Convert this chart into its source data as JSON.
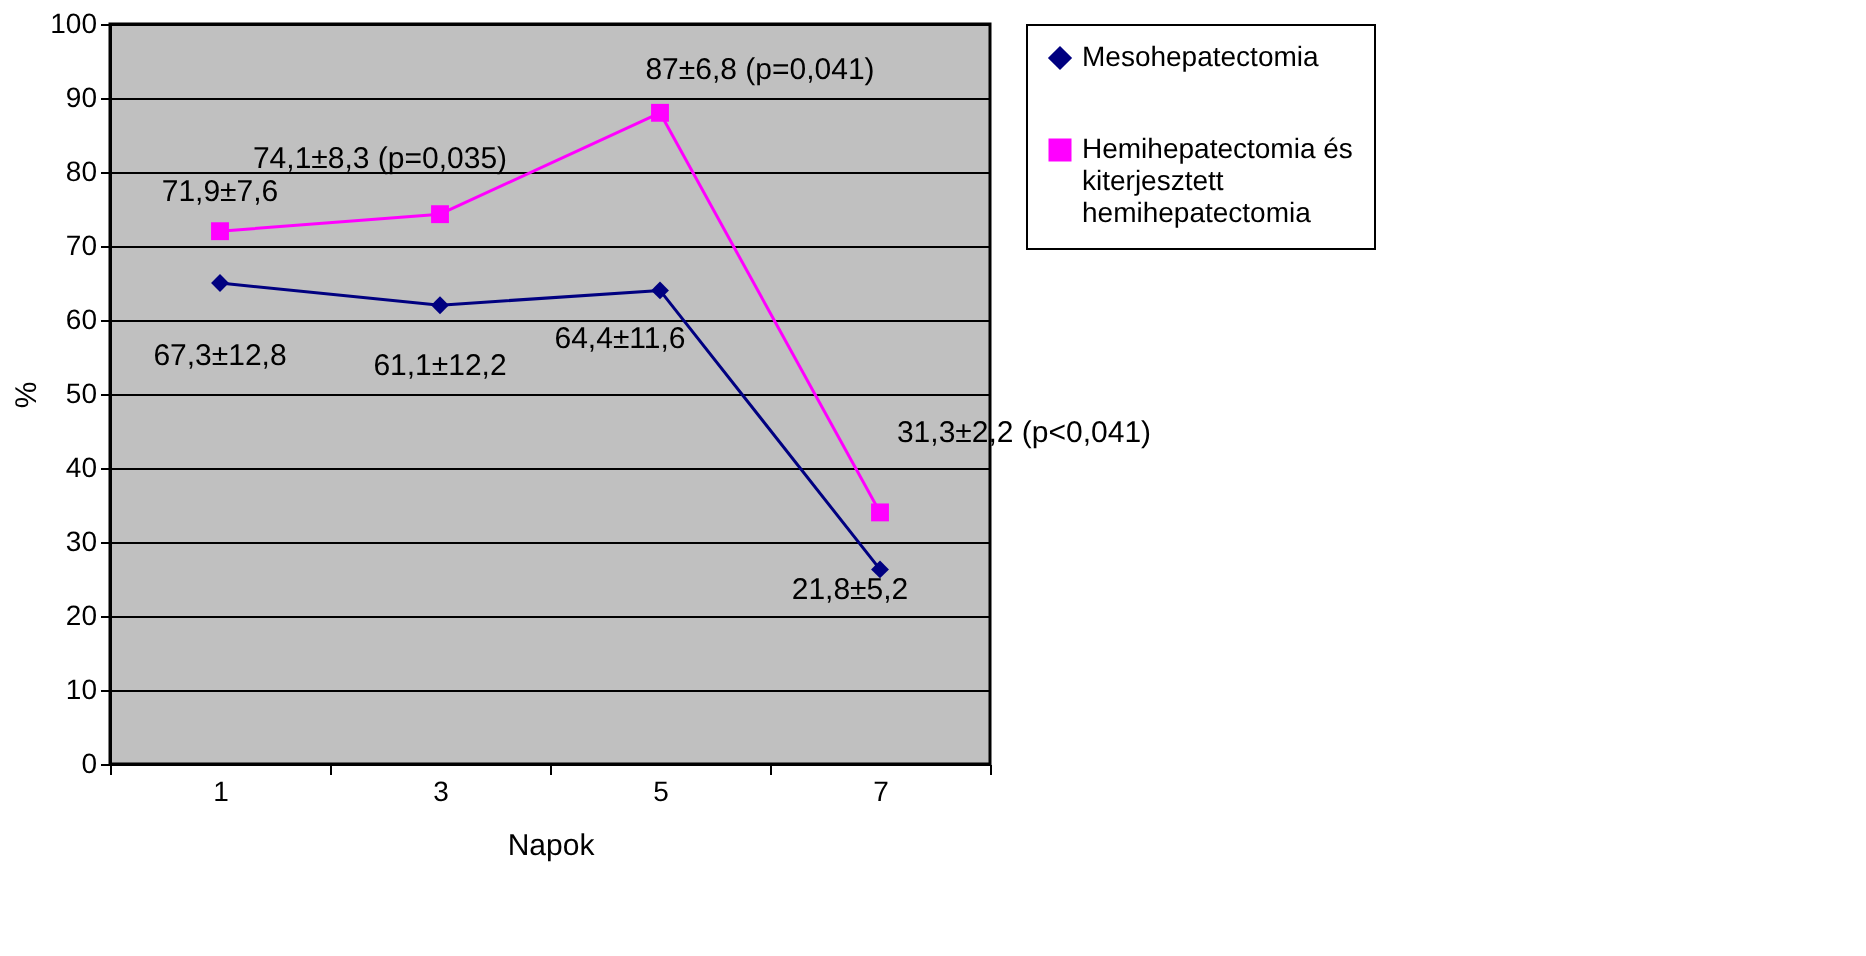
{
  "chart_data": {
    "type": "line",
    "xlabel": "Napok",
    "ylabel": "%",
    "categories": [
      "1",
      "3",
      "5",
      "7"
    ],
    "series": [
      {
        "name": "Mesohepatectomia",
        "color": "#000080",
        "marker": "diamond",
        "values": [
          65,
          62,
          64,
          26.3
        ]
      },
      {
        "name": "Hemihepatectomia és kiterjesztett hemihepatectomia",
        "color": "#ff00ff",
        "marker": "square",
        "values": [
          72,
          74.3,
          88,
          34
        ]
      }
    ],
    "ylim": [
      0,
      100
    ],
    "yticks": [
      0,
      10,
      20,
      30,
      40,
      50,
      60,
      70,
      80,
      90,
      100
    ],
    "grid": "y",
    "legend": "right",
    "annotations": [
      {
        "text": "71,9±7,6",
        "x": "1",
        "y": 72
      },
      {
        "text": "74,1±8,3 (p=0,035)",
        "x": "3",
        "y": 74.3
      },
      {
        "text": "87±6,8 (p=0,041)",
        "x": "5",
        "y": 88
      },
      {
        "text": "31,3±2,2 (p<0,041)",
        "x": "7",
        "y": 34
      },
      {
        "text": "67,3±12,8",
        "x": "1",
        "y": 65
      },
      {
        "text": "61,1±12,2",
        "x": "3",
        "y": 62
      },
      {
        "text": "64,4±11,6",
        "x": "5",
        "y": 64
      },
      {
        "text": "21,8±5,2",
        "x": "7",
        "y": 26.3
      }
    ]
  }
}
